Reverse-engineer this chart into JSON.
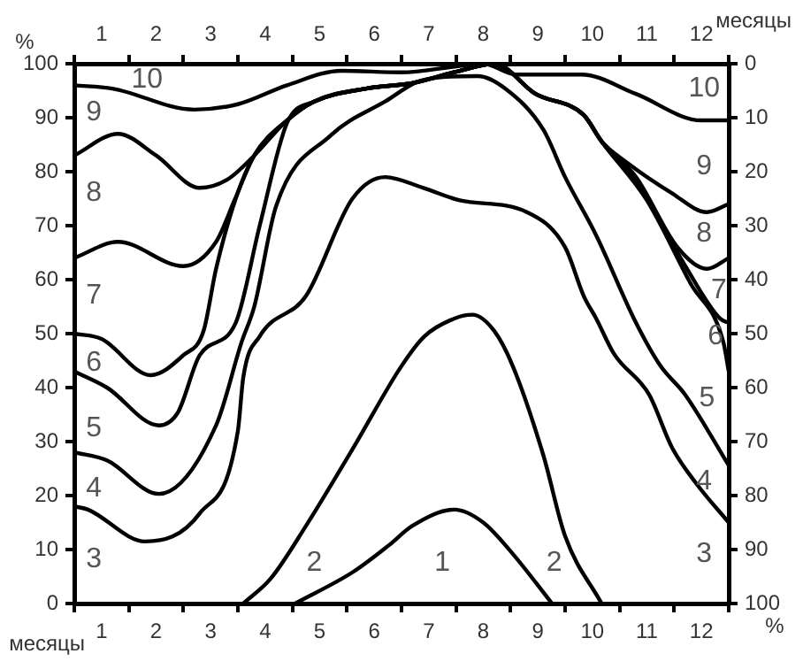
{
  "chart_data": {
    "type": "line",
    "xlabel": "месяцы",
    "x2label": "месяцы",
    "ylabel": "%",
    "y2label": "%",
    "marker": "none",
    "line_style": "solid",
    "xlim": [
      0,
      12
    ],
    "x2lim": [
      0,
      12
    ],
    "ylim": [
      0,
      100
    ],
    "y2lim": [
      100,
      0
    ],
    "xticks": [
      {
        "value": 0,
        "label": null
      },
      {
        "value": 0.5,
        "label": "1"
      },
      {
        "value": 1,
        "label": null
      },
      {
        "value": 1.5,
        "label": "2"
      },
      {
        "value": 2,
        "label": null
      },
      {
        "value": 2.5,
        "label": "3"
      },
      {
        "value": 3,
        "label": null
      },
      {
        "value": 3.5,
        "label": "4"
      },
      {
        "value": 4,
        "label": null
      },
      {
        "value": 4.5,
        "label": "5"
      },
      {
        "value": 5,
        "label": null
      },
      {
        "value": 5.5,
        "label": "6"
      },
      {
        "value": 6,
        "label": null
      },
      {
        "value": 6.5,
        "label": "7"
      },
      {
        "value": 7,
        "label": null
      },
      {
        "value": 7.5,
        "label": "8"
      },
      {
        "value": 8,
        "label": null
      },
      {
        "value": 8.5,
        "label": "9"
      },
      {
        "value": 9,
        "label": null
      },
      {
        "value": 9.5,
        "label": "10"
      },
      {
        "value": 10,
        "label": null
      },
      {
        "value": 10.5,
        "label": "11"
      },
      {
        "value": 11,
        "label": null
      },
      {
        "value": 11.5,
        "label": "12"
      },
      {
        "value": 12,
        "label": null
      }
    ],
    "x2ticks": [
      {
        "value": 0,
        "label": null
      },
      {
        "value": 0.5,
        "label": "1"
      },
      {
        "value": 1,
        "label": null
      },
      {
        "value": 1.5,
        "label": "2"
      },
      {
        "value": 2,
        "label": null
      },
      {
        "value": 2.5,
        "label": "3"
      },
      {
        "value": 3,
        "label": null
      },
      {
        "value": 3.5,
        "label": "4"
      },
      {
        "value": 4,
        "label": null
      },
      {
        "value": 4.5,
        "label": "5"
      },
      {
        "value": 5,
        "label": null
      },
      {
        "value": 5.5,
        "label": "6"
      },
      {
        "value": 6,
        "label": null
      },
      {
        "value": 6.5,
        "label": "7"
      },
      {
        "value": 7,
        "label": null
      },
      {
        "value": 7.5,
        "label": "8"
      },
      {
        "value": 8,
        "label": null
      },
      {
        "value": 8.5,
        "label": "9"
      },
      {
        "value": 9,
        "label": null
      },
      {
        "value": 9.5,
        "label": "10"
      },
      {
        "value": 10,
        "label": null
      },
      {
        "value": 10.5,
        "label": "11"
      },
      {
        "value": 11,
        "label": null
      },
      {
        "value": 11.5,
        "label": "12"
      },
      {
        "value": 12,
        "label": null
      }
    ],
    "yticks": [
      0,
      10,
      20,
      30,
      40,
      50,
      60,
      70,
      80,
      90,
      100
    ],
    "y2ticks": [
      0,
      10,
      20,
      30,
      40,
      50,
      60,
      70,
      80,
      90,
      100
    ],
    "series": [
      {
        "color": "#000000",
        "x": [
          0,
          0.7,
          2.2,
          3.0,
          3.9,
          4.9,
          6,
          7,
          7.5,
          8.1,
          9.3,
          10.3,
          11.5,
          12
        ],
        "values": [
          96,
          95.4,
          91.5,
          92.5,
          96,
          98.7,
          98.4,
          99.5,
          100,
          98,
          98,
          94.4,
          89.5,
          89.5
        ]
      },
      {
        "color": "#000000",
        "x": [
          0,
          0.8,
          1.5,
          2.3,
          2.8,
          3.3,
          3.9,
          4.4,
          5.35,
          6.2,
          7,
          7.7,
          8.46,
          9.34,
          9.67,
          10.09,
          10.96,
          11.6,
          12
        ],
        "values": [
          83,
          87,
          83,
          77,
          78.5,
          83,
          89.5,
          93,
          95.4,
          96.4,
          98.5,
          100,
          94.4,
          90.5,
          85.6,
          82,
          76,
          72.5,
          74
        ]
      },
      {
        "color": "#000000",
        "x": [
          0,
          0.8,
          2,
          2.6,
          2.95,
          3.3,
          3.9,
          4.4,
          5.35,
          6.2,
          7,
          7.7,
          8.46,
          9.34,
          9.67,
          10.3,
          11.06,
          11.6,
          12
        ],
        "values": [
          64,
          67,
          62.5,
          67,
          75,
          83,
          89.5,
          93,
          95.4,
          96.4,
          98.5,
          100,
          94.4,
          90.5,
          85.6,
          79,
          66,
          62,
          64
        ]
      },
      {
        "color": "#000000",
        "x": [
          0,
          0.5,
          1.4,
          2,
          2.37,
          2.6,
          2.96,
          3.3,
          3.9,
          4.4,
          5.35,
          6.2,
          7,
          7.7,
          8.46,
          9.34,
          9.67,
          10.4,
          11.2,
          11.84,
          12
        ],
        "values": [
          50,
          49,
          42.3,
          46,
          50.5,
          62,
          75,
          83,
          89.5,
          93,
          95.4,
          96.4,
          98.5,
          100,
          94.4,
          90.5,
          85.6,
          76.7,
          62.6,
          52.8,
          52
        ]
      },
      {
        "color": "#000000",
        "x": [
          0,
          0.6,
          1.55,
          1.9,
          2.3,
          2.96,
          3.4,
          3.9,
          4.4,
          5.35,
          6.2,
          7,
          7.7,
          8.46,
          9.34,
          9.67,
          10.5,
          11.3,
          11.9,
          12
        ],
        "values": [
          43,
          40,
          33,
          35.4,
          46,
          52,
          70,
          89,
          93,
          95.4,
          96.4,
          98.5,
          100,
          94.4,
          90.5,
          85.6,
          74.7,
          59.3,
          48.5,
          43
        ]
      },
      {
        "color": "#000000",
        "x": [
          0,
          0.6,
          1.55,
          2.6,
          3.07,
          3.3,
          3.7,
          4.7,
          5.7,
          6.4,
          7.4,
          7.9,
          8.6,
          9,
          9.57,
          10.3,
          10.75,
          11.2,
          12
        ],
        "values": [
          28,
          26.5,
          20.3,
          33,
          48.5,
          55,
          73.6,
          86.7,
          93,
          97,
          97.7,
          95.4,
          87.8,
          79,
          68.2,
          52,
          44,
          38.7,
          25.6
        ]
      },
      {
        "color": "#000000",
        "x": [
          0,
          0.25,
          1.3,
          2.3,
          3.0,
          3.1,
          3.4,
          4.25,
          5.1,
          5.7,
          6.4,
          7.07,
          8.3,
          9.0,
          9.34,
          9.57,
          9.9,
          10.54,
          10.96,
          11.4,
          12
        ],
        "values": [
          18,
          17.4,
          11.5,
          16.7,
          32,
          42,
          49.5,
          57,
          75,
          79,
          77,
          74.7,
          72.5,
          66,
          57,
          52.8,
          46.2,
          38.7,
          28.9,
          22.3,
          15
        ]
      },
      {
        "color": "#000000",
        "x": [
          3.1,
          3.6,
          4.25,
          5.12,
          6.0,
          6.42,
          6.97,
          7.3,
          7.7,
          8.04,
          8.6,
          9.0,
          9.67
        ],
        "values": [
          0,
          4.6,
          14.4,
          28.9,
          44,
          49.5,
          52.8,
          53.5,
          50.5,
          44,
          27.5,
          12.5,
          0
        ]
      },
      {
        "color": "#000000",
        "x": [
          4.05,
          5.12,
          5.77,
          6.2,
          6.97,
          7.5,
          8.04,
          8.76
        ],
        "values": [
          0,
          5.9,
          10.8,
          14.4,
          17.4,
          15,
          9.2,
          0
        ]
      }
    ],
    "annotations": [
      "10",
      "9",
      "8",
      "7",
      "6",
      "5",
      "4",
      "3",
      "2",
      "1",
      "2",
      "10",
      "9",
      "8",
      "7",
      "6",
      "5",
      "4",
      "3"
    ]
  }
}
